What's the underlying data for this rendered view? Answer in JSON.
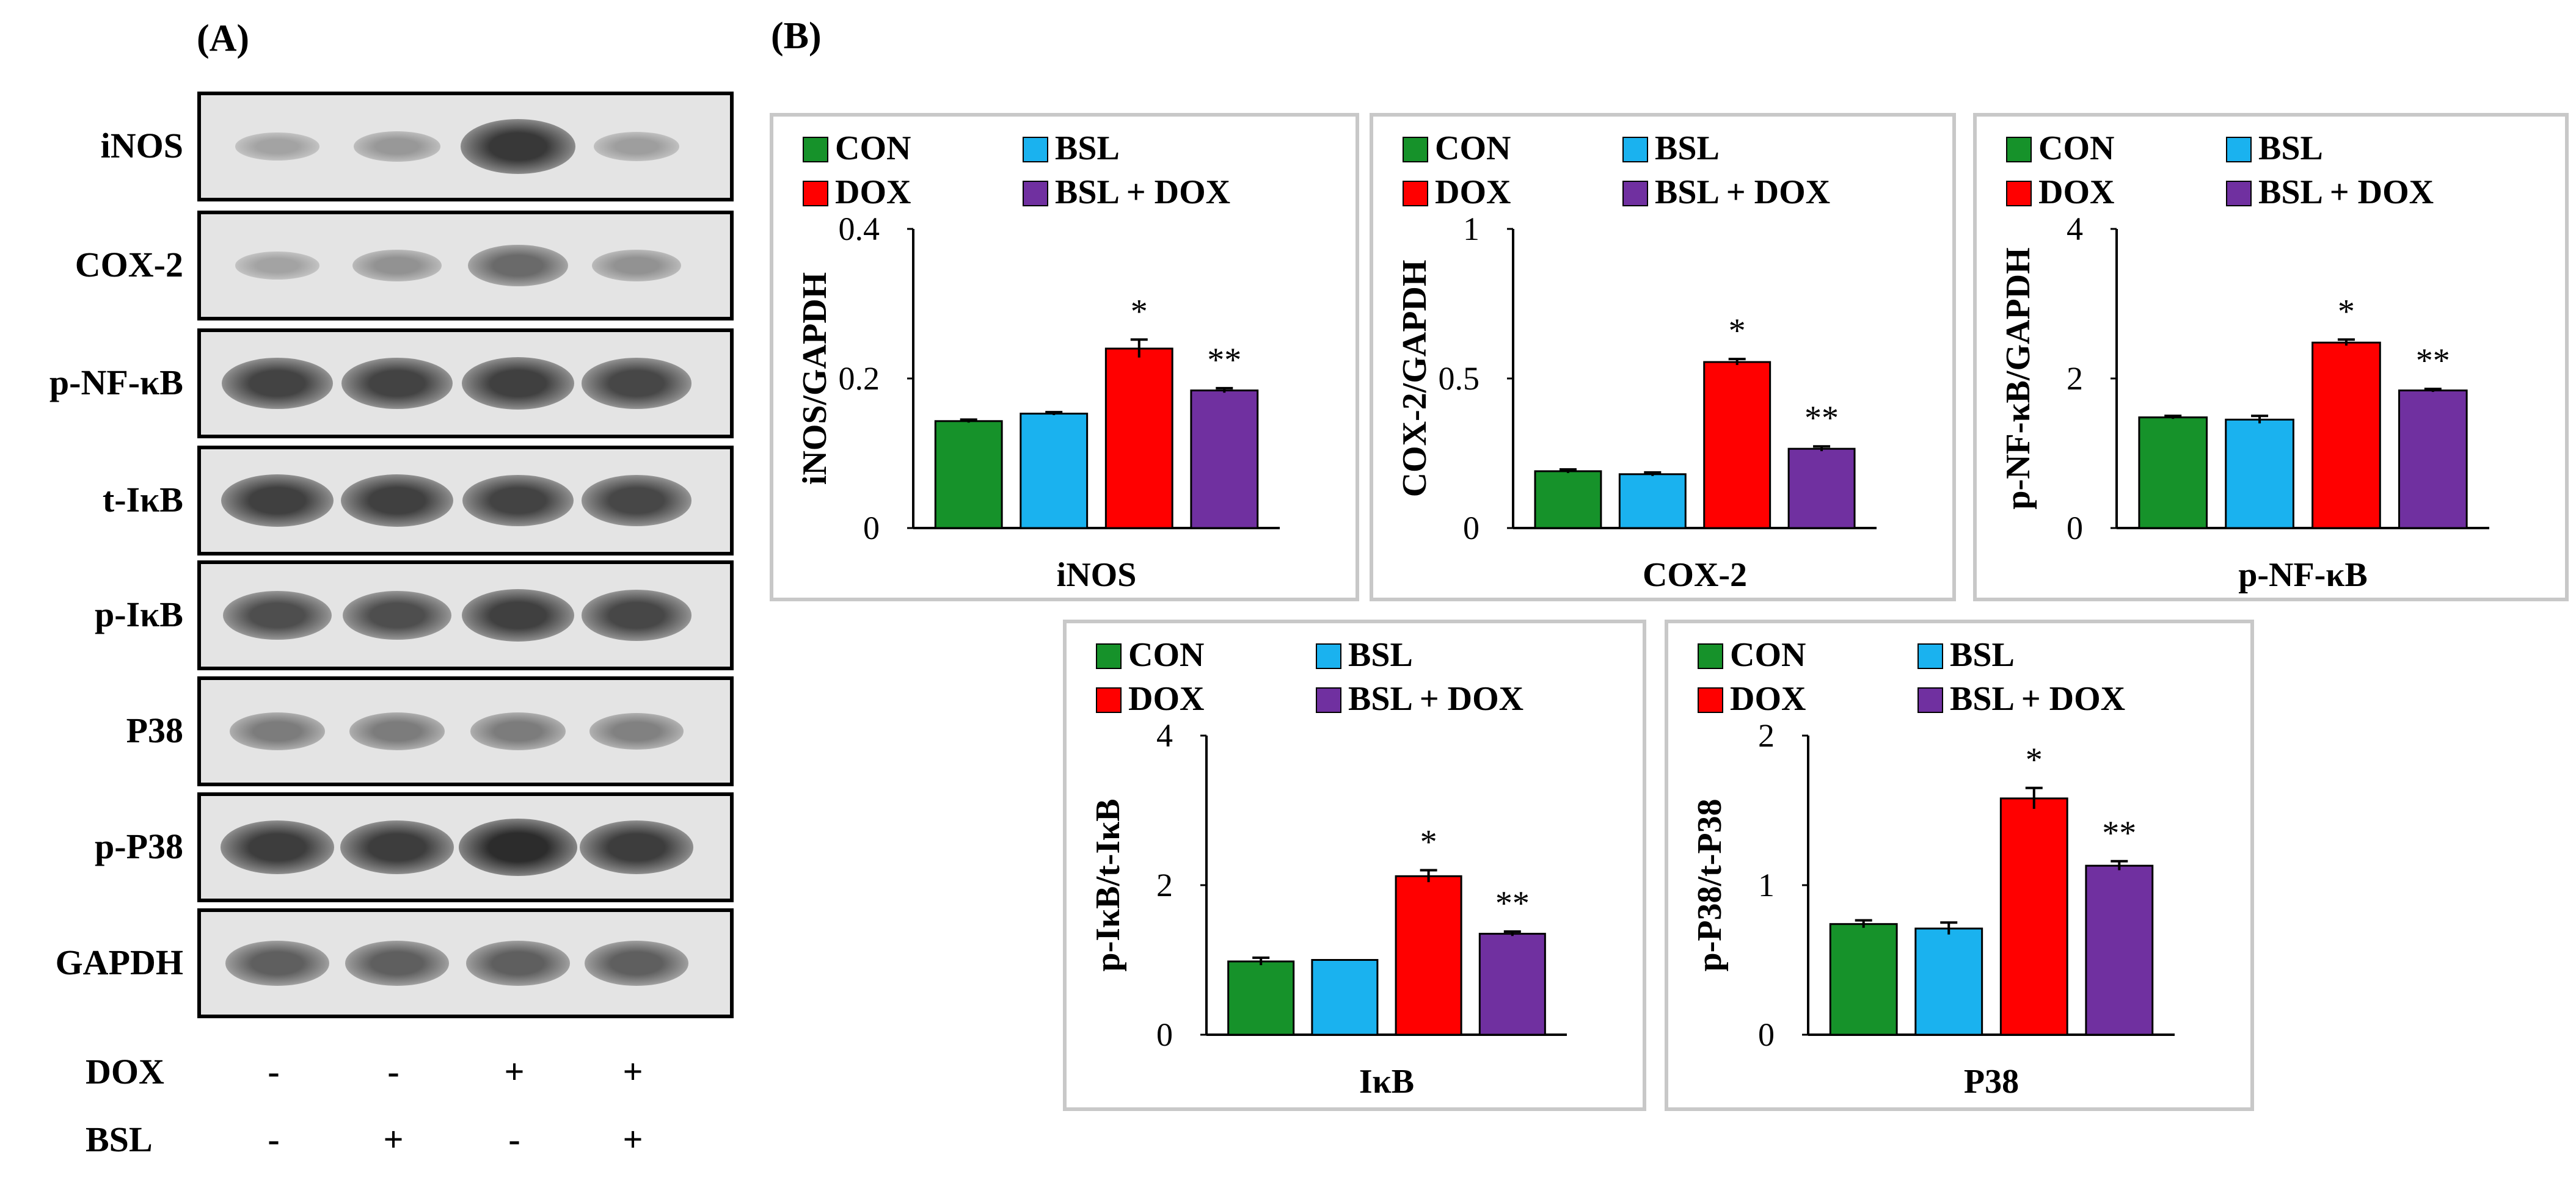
{
  "panel_a": {
    "label": "(A)",
    "proteins": [
      "iNOS",
      "COX-2",
      "p-NF-κB",
      "t-IκB",
      "p-IκB",
      "P38",
      "p-P38",
      "GAPDH"
    ],
    "intensities": [
      [
        0.22,
        0.28,
        0.85,
        0.25
      ],
      [
        0.22,
        0.32,
        0.55,
        0.32
      ],
      [
        0.78,
        0.78,
        0.8,
        0.76
      ],
      [
        0.8,
        0.8,
        0.78,
        0.76
      ],
      [
        0.72,
        0.72,
        0.8,
        0.76
      ],
      [
        0.45,
        0.45,
        0.45,
        0.42
      ],
      [
        0.82,
        0.82,
        0.92,
        0.82
      ],
      [
        0.62,
        0.62,
        0.62,
        0.62
      ]
    ],
    "treatments": [
      {
        "name": "DOX",
        "signs": [
          "-",
          "-",
          "+",
          "+"
        ]
      },
      {
        "name": "BSL",
        "signs": [
          "-",
          "+",
          "-",
          "+"
        ]
      }
    ]
  },
  "panel_b": {
    "label": "(B)"
  },
  "colors": {
    "CON": "#16922a",
    "BSL": "#1ab2ef",
    "DOX": "#ff0000",
    "BSL + DOX": "#7030a0",
    "frame": "#c8c8c8"
  },
  "chart_data": [
    {
      "type": "bar",
      "title": "",
      "xlabel": "iNOS",
      "ylabel": "iNOS/GAPDH",
      "legend": [
        "CON",
        "BSL",
        "DOX",
        "BSL + DOX"
      ],
      "categories": [
        "CON",
        "BSL",
        "DOX",
        "BSL + DOX"
      ],
      "values": [
        0.143,
        0.153,
        0.24,
        0.184
      ],
      "errors": [
        0.002,
        0.002,
        0.012,
        0.003
      ],
      "annotations": [
        "",
        "",
        "*",
        "**"
      ],
      "ylim": [
        0,
        0.4
      ],
      "yticks": [
        0,
        0.2,
        0.4
      ],
      "ytick_labels": [
        "0",
        "0.2",
        "0.4"
      ]
    },
    {
      "type": "bar",
      "title": "",
      "xlabel": "COX-2",
      "ylabel": "COX-2/GAPDH",
      "legend": [
        "CON",
        "BSL",
        "DOX",
        "BSL + DOX"
      ],
      "categories": [
        "CON",
        "BSL",
        "DOX",
        "BSL + DOX"
      ],
      "values": [
        0.19,
        0.18,
        0.555,
        0.265
      ],
      "errors": [
        0.006,
        0.006,
        0.01,
        0.008
      ],
      "annotations": [
        "",
        "",
        "*",
        "**"
      ],
      "ylim": [
        0,
        1
      ],
      "yticks": [
        0,
        0.5,
        1
      ],
      "ytick_labels": [
        "0",
        "0.5",
        "1"
      ]
    },
    {
      "type": "bar",
      "title": "",
      "xlabel": "p-NF-κB",
      "ylabel": "p-NF-κB/GAPDH",
      "legend": [
        "CON",
        "BSL",
        "DOX",
        "BSL + DOX"
      ],
      "categories": [
        "CON",
        "BSL",
        "DOX",
        "BSL + DOX"
      ],
      "values": [
        1.48,
        1.45,
        2.48,
        1.84
      ],
      "errors": [
        0.02,
        0.05,
        0.04,
        0.02
      ],
      "annotations": [
        "",
        "",
        "*",
        "**"
      ],
      "ylim": [
        0,
        4
      ],
      "yticks": [
        0,
        2,
        4
      ],
      "ytick_labels": [
        "0",
        "2",
        "4"
      ]
    },
    {
      "type": "bar",
      "title": "",
      "xlabel": "IκB",
      "ylabel": "p-IκB/t-IκB",
      "legend": [
        "CON",
        "BSL",
        "DOX",
        "BSL + DOX"
      ],
      "categories": [
        "CON",
        "BSL",
        "DOX",
        "BSL + DOX"
      ],
      "values": [
        0.98,
        1.0,
        2.12,
        1.35
      ],
      "errors": [
        0.05,
        0.0,
        0.08,
        0.03
      ],
      "annotations": [
        "",
        "",
        "*",
        "**"
      ],
      "ylim": [
        0,
        4
      ],
      "yticks": [
        0,
        2,
        4
      ],
      "ytick_labels": [
        "0",
        "2",
        "4"
      ]
    },
    {
      "type": "bar",
      "title": "",
      "xlabel": "P38",
      "ylabel": "p-P38/t-P38",
      "legend": [
        "CON",
        "BSL",
        "DOX",
        "BSL + DOX"
      ],
      "categories": [
        "CON",
        "BSL",
        "DOX",
        "BSL + DOX"
      ],
      "values": [
        0.74,
        0.71,
        1.58,
        1.13
      ],
      "errors": [
        0.025,
        0.04,
        0.07,
        0.03
      ],
      "annotations": [
        "",
        "",
        "*",
        "**"
      ],
      "ylim": [
        0,
        2
      ],
      "yticks": [
        0,
        1,
        2
      ],
      "ytick_labels": [
        "0",
        "1",
        "2"
      ]
    }
  ]
}
